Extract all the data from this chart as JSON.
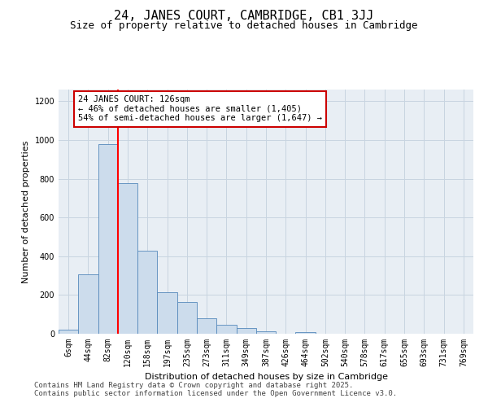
{
  "title": "24, JANES COURT, CAMBRIDGE, CB1 3JJ",
  "subtitle": "Size of property relative to detached houses in Cambridge",
  "xlabel": "Distribution of detached houses by size in Cambridge",
  "ylabel": "Number of detached properties",
  "categories": [
    "6sqm",
    "44sqm",
    "82sqm",
    "120sqm",
    "158sqm",
    "197sqm",
    "235sqm",
    "273sqm",
    "311sqm",
    "349sqm",
    "387sqm",
    "426sqm",
    "464sqm",
    "502sqm",
    "540sqm",
    "578sqm",
    "617sqm",
    "655sqm",
    "693sqm",
    "731sqm",
    "769sqm"
  ],
  "values": [
    22,
    305,
    980,
    775,
    430,
    215,
    165,
    78,
    45,
    28,
    12,
    0,
    10,
    0,
    0,
    0,
    0,
    0,
    0,
    0,
    0
  ],
  "bar_color": "#ccdcec",
  "bar_edge_color": "#5588bb",
  "grid_color": "#c8d4e0",
  "bg_color": "#e8eef4",
  "red_line_index": 3,
  "annotation_text": "24 JANES COURT: 126sqm\n← 46% of detached houses are smaller (1,405)\n54% of semi-detached houses are larger (1,647) →",
  "annotation_box_facecolor": "#ffffff",
  "annotation_box_edgecolor": "#cc0000",
  "footnote1": "Contains HM Land Registry data © Crown copyright and database right 2025.",
  "footnote2": "Contains public sector information licensed under the Open Government Licence v3.0.",
  "ylim": [
    0,
    1260
  ],
  "yticks": [
    0,
    200,
    400,
    600,
    800,
    1000,
    1200
  ],
  "title_fontsize": 11,
  "subtitle_fontsize": 9,
  "axis_label_fontsize": 8,
  "tick_fontsize": 7,
  "annotation_fontsize": 7.5,
  "footnote_fontsize": 6.5
}
